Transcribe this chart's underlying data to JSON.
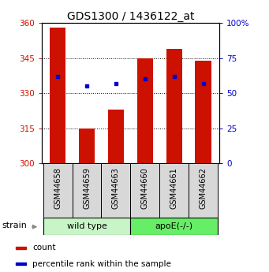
{
  "title": "GDS1300 / 1436122_at",
  "samples": [
    "GSM44658",
    "GSM44659",
    "GSM44663",
    "GSM44660",
    "GSM44661",
    "GSM44662"
  ],
  "red_values": [
    358,
    315,
    323,
    345,
    349,
    344
  ],
  "blue_values": [
    337,
    333,
    334,
    336,
    337,
    334
  ],
  "ylim_left": [
    300,
    360
  ],
  "ylim_right": [
    0,
    100
  ],
  "yticks_left": [
    300,
    315,
    330,
    345,
    360
  ],
  "yticks_right": [
    0,
    25,
    50,
    75,
    100
  ],
  "ytick_labels_right": [
    "0",
    "25",
    "50",
    "75",
    "100%"
  ],
  "group_wild_type": [
    0,
    1,
    2
  ],
  "group_apoe": [
    3,
    4,
    5
  ],
  "group_wild_color": "#c8f5c8",
  "group_apoe_color": "#66ee66",
  "bar_color": "#cc1100",
  "dot_color": "#0000cc",
  "legend_items": [
    {
      "color": "#cc1100",
      "label": "count"
    },
    {
      "color": "#0000cc",
      "label": "percentile rank within the sample"
    }
  ]
}
